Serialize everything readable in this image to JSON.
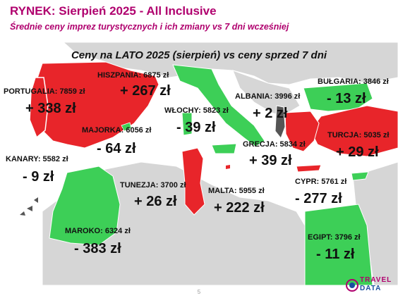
{
  "header": {
    "title": "RYNEK: Sierpień 2025 - All Inclusive",
    "subtitle": "Średnie ceny imprez turystycznych i ich zmiany vs 7 dni wcześniej"
  },
  "map_title": "Ceny na LATO 2025 (sierpień) vs ceny sprzed 7 dni",
  "colors": {
    "increase": "#e8252a",
    "decrease": "#3dcf57",
    "neutral_land": "#d6d6d6",
    "sea": "#ffffff",
    "dark": "#555555",
    "brand_pink": "#b0006e",
    "brand_blue": "#1a4fa0"
  },
  "destinations": [
    {
      "id": "portugalia",
      "label": "PORTUGALIA: 7859 zł",
      "change": "+ 338 zł",
      "trend": "increase"
    },
    {
      "id": "hiszpania",
      "label": "HISZPANIA: 6875 zł",
      "change": "+ 267 zł",
      "trend": "increase"
    },
    {
      "id": "majorka",
      "label": "MAJORKA: 6056 zł",
      "change": "- 64 zł",
      "trend": "decrease"
    },
    {
      "id": "kanary",
      "label": "KANARY: 5582 zł",
      "change": "- 9 zł",
      "trend": "decrease"
    },
    {
      "id": "wlochy",
      "label": "WŁOCHY: 5823 zł",
      "change": "- 39 zł",
      "trend": "decrease"
    },
    {
      "id": "albania",
      "label": "ALBANIA: 3996 zł",
      "change": "+ 2 zł",
      "trend": "increase"
    },
    {
      "id": "bulgaria",
      "label": "BUŁGARIA: 3846 zł",
      "change": "- 13 zł",
      "trend": "decrease"
    },
    {
      "id": "turcja",
      "label": "TURCJA: 5035 zł",
      "change": "+ 29 zł",
      "trend": "increase"
    },
    {
      "id": "grecja",
      "label": "GRECJA: 5834 zł",
      "change": "+ 39 zł",
      "trend": "increase"
    },
    {
      "id": "tunezja",
      "label": "TUNEZJA: 3700 zł",
      "change": "+ 26 zł",
      "trend": "increase"
    },
    {
      "id": "malta",
      "label": "MALTA: 5955 zł",
      "change": "+ 222 zł",
      "trend": "increase"
    },
    {
      "id": "cypr",
      "label": "CYPR: 5761 zł",
      "change": "- 277 zł",
      "trend": "decrease"
    },
    {
      "id": "maroko",
      "label": "MAROKO: 6324 zł",
      "change": "- 383 zł",
      "trend": "decrease"
    },
    {
      "id": "egipt",
      "label": "EGIPT: 3796 zł",
      "change": "- 11 zł",
      "trend": "decrease"
    }
  ],
  "footer": {
    "page_number": "5"
  },
  "logo": {
    "line1": "TRAVEL",
    "line2": "DATA"
  }
}
